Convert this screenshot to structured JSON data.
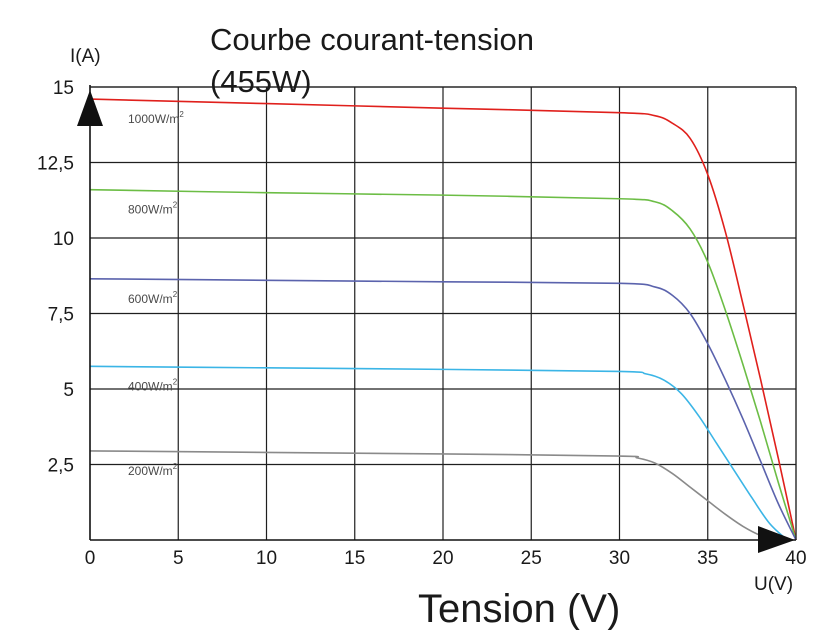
{
  "chart_data": {
    "type": "line",
    "title_lines": [
      "Courbe courant-tension",
      "(455W)"
    ],
    "xlabel": "Tension (V)",
    "x_axis_name": "U(V)",
    "y_axis_name": "I(A)",
    "xlim": [
      0,
      40
    ],
    "ylim": [
      0,
      15
    ],
    "x_ticks": [
      {
        "value": 0,
        "label": "0"
      },
      {
        "value": 5,
        "label": "5"
      },
      {
        "value": 10,
        "label": "10"
      },
      {
        "value": 15,
        "label": "15"
      },
      {
        "value": 20,
        "label": "20"
      },
      {
        "value": 25,
        "label": "25"
      },
      {
        "value": 30,
        "label": "30"
      },
      {
        "value": 35,
        "label": "35"
      },
      {
        "value": 40,
        "label": "40"
      }
    ],
    "y_ticks": [
      {
        "value": 2.5,
        "label": "2,5"
      },
      {
        "value": 5,
        "label": "5"
      },
      {
        "value": 7.5,
        "label": "7,5"
      },
      {
        "value": 10,
        "label": "10"
      },
      {
        "value": 12.5,
        "label": "12,5"
      },
      {
        "value": 15,
        "label": "15"
      }
    ],
    "grid": true,
    "series": [
      {
        "name": "1000W/m",
        "unit_sup": "2",
        "color": "#e0201c",
        "x": [
          0,
          10,
          20,
          30,
          32,
          33,
          34,
          35,
          36,
          37,
          38,
          39,
          40
        ],
        "y": [
          14.6,
          14.45,
          14.3,
          14.15,
          14.05,
          13.8,
          13.3,
          12.1,
          10.2,
          7.8,
          5.3,
          2.7,
          0
        ]
      },
      {
        "name": "800W/m",
        "unit_sup": "2",
        "color": "#6cbd45",
        "x": [
          0,
          10,
          20,
          30,
          32,
          33,
          34,
          35,
          36,
          37,
          38,
          39,
          40
        ],
        "y": [
          11.6,
          11.5,
          11.42,
          11.3,
          11.2,
          10.9,
          10.3,
          9.2,
          7.6,
          5.8,
          3.9,
          1.9,
          0
        ]
      },
      {
        "name": "600W/m",
        "unit_sup": "2",
        "color": "#5b63ad",
        "x": [
          0,
          10,
          20,
          30,
          32,
          33,
          34,
          35,
          36,
          37,
          38,
          39,
          40
        ],
        "y": [
          8.65,
          8.6,
          8.55,
          8.5,
          8.38,
          8.1,
          7.5,
          6.5,
          5.3,
          4.0,
          2.6,
          1.2,
          0
        ]
      },
      {
        "name": "400W/m",
        "unit_sup": "2",
        "color": "#3bb5e6",
        "x": [
          0,
          10,
          20,
          30,
          31.5,
          32.5,
          33.5,
          34.5,
          35.5,
          36.5,
          37.5,
          38.5,
          39.5
        ],
        "y": [
          5.75,
          5.7,
          5.65,
          5.58,
          5.5,
          5.3,
          4.85,
          4.1,
          3.2,
          2.3,
          1.4,
          0.55,
          0
        ]
      },
      {
        "name": "200W/m",
        "unit_sup": "2",
        "color": "#8a8a8a",
        "x": [
          0,
          10,
          20,
          30,
          31,
          32,
          33,
          34,
          35,
          36,
          37,
          38,
          39
        ],
        "y": [
          2.95,
          2.9,
          2.85,
          2.78,
          2.72,
          2.55,
          2.2,
          1.75,
          1.3,
          0.85,
          0.45,
          0.15,
          0
        ]
      }
    ]
  }
}
